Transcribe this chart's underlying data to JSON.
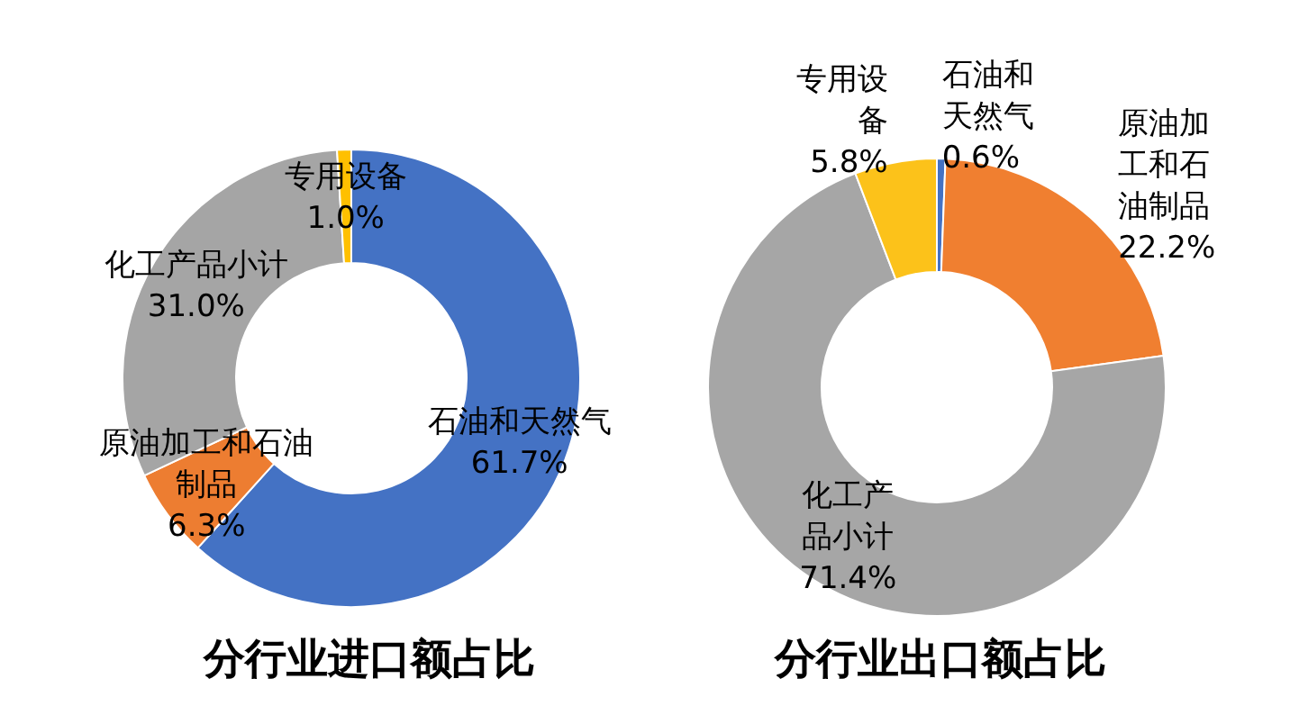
{
  "chart_data": [
    {
      "type": "donut",
      "title": "分行业进口额占比",
      "categories": [
        "石油和天然气",
        "原油加工和石油制品",
        "化工产品小计",
        "专用设备"
      ],
      "values": [
        61.7,
        6.3,
        31.0,
        1.0
      ],
      "colors": [
        "#4472c4",
        "#ed7d31",
        "#a5a5a5",
        "#ffc000"
      ],
      "value_labels": [
        "61.7%",
        "6.3%",
        "31.0%",
        "1.0%"
      ]
    },
    {
      "type": "donut",
      "title": "分行业出口额占比",
      "categories": [
        "石油和天然气",
        "原油加工和石油制品",
        "化工产品小计",
        "专用设备"
      ],
      "values": [
        0.6,
        22.2,
        71.4,
        5.8
      ],
      "colors": [
        "#4472c4",
        "#f07f30",
        "#a6a6a6",
        "#fcc21a"
      ],
      "value_labels": [
        "0.6%",
        "22.2%",
        "71.4%",
        "5.8%"
      ]
    }
  ]
}
